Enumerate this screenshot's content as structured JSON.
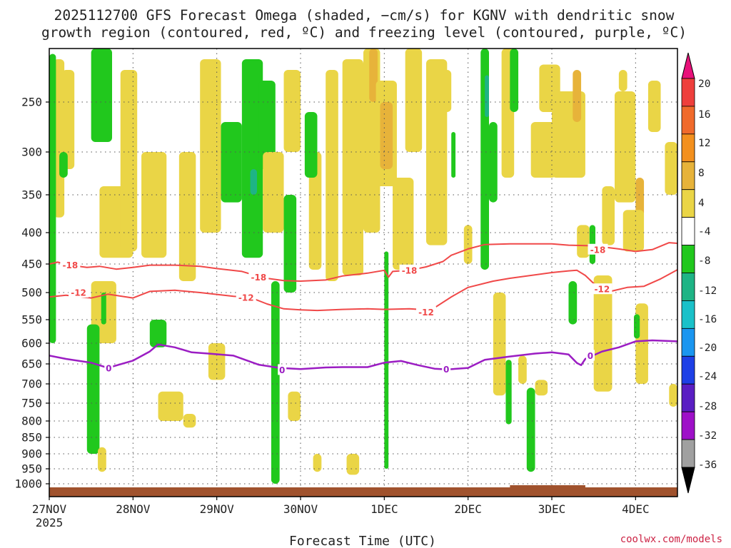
{
  "chart_data": {
    "type": "heatmap",
    "title_lines": [
      "2025112700 GFS Forecast Omega (shaded, −cm/s) for KGNV with dendritic snow",
      "growth region (contoured, red, ºC) and freezing level (contoured, purple, ºC)"
    ],
    "xlabel": "Forecast Time (UTC)",
    "x_ticks": [
      "27NOV",
      "28NOV",
      "29NOV",
      "30NOV",
      "1DEC",
      "2DEC",
      "3DEC",
      "4DEC"
    ],
    "x_tick_year": "2025",
    "x_range_days": [
      0,
      7.5
    ],
    "y_ticks": [
      250,
      300,
      350,
      400,
      450,
      500,
      550,
      600,
      650,
      700,
      750,
      800,
      850,
      900,
      950,
      1000
    ],
    "y_range_hpa": [
      200,
      1030
    ],
    "grid": true,
    "colorbar": {
      "labels": [
        "20",
        "16",
        "12",
        "8",
        "4",
        "-4",
        "-8",
        "-12",
        "-16",
        "-20",
        "-24",
        "-28",
        "-32",
        "-36"
      ],
      "colors": [
        "#e8117a",
        "#ee3f3c",
        "#f06a2b",
        "#f3901e",
        "#e7b33a",
        "#ead546",
        "#ffffff",
        "#21c81d",
        "#1eb485",
        "#1ac1c9",
        "#1a96f0",
        "#1e40e6",
        "#5a1ec3",
        "#9e10c8",
        "#a0a0a0",
        "#000000"
      ]
    },
    "contours": [
      {
        "label": "-18",
        "color": "#f04848",
        "x": [
          0,
          0.1,
          0.25,
          0.45,
          0.6,
          0.8,
          1.0,
          1.2,
          1.5,
          1.8,
          2.0,
          2.3,
          2.55,
          2.8,
          3.0,
          3.3,
          3.5,
          3.8,
          4.0,
          4.05,
          4.1,
          4.3,
          4.5,
          4.7,
          4.8,
          5.0,
          5.2,
          5.5,
          6.0,
          6.2,
          6.5,
          6.8,
          7.0,
          7.2,
          7.4,
          7.5
        ],
        "hpa": [
          450,
          447,
          452,
          456,
          454,
          459,
          456,
          452,
          452,
          454,
          458,
          463,
          474,
          479,
          480,
          478,
          471,
          466,
          461,
          473,
          463,
          461,
          455,
          446,
          436,
          426,
          419,
          418,
          418,
          420,
          421,
          426,
          430,
          427,
          416,
          417
        ]
      },
      {
        "label": "-12",
        "color": "#f04848",
        "x": [
          0,
          0.2,
          0.5,
          0.7,
          1.0,
          1.2,
          1.5,
          1.8,
          2.2,
          2.4,
          2.6,
          2.8,
          3.0,
          3.2,
          3.5,
          3.8,
          4.0,
          4.3,
          4.5,
          4.6,
          4.8,
          5.0,
          5.3,
          5.5,
          6.0,
          6.2,
          6.3,
          6.4,
          6.6,
          6.7,
          6.9,
          7.1,
          7.3,
          7.5
        ],
        "hpa": [
          508,
          505,
          510,
          503,
          510,
          498,
          496,
          500,
          507,
          509,
          521,
          530,
          532,
          533,
          531,
          530,
          531,
          530,
          532,
          528,
          508,
          491,
          480,
          475,
          465,
          462,
          461,
          470,
          498,
          498,
          491,
          489,
          476,
          460
        ]
      },
      {
        "label": "0",
        "color": "#9b1dc3",
        "x": [
          0,
          0.2,
          0.5,
          0.7,
          0.8,
          1.0,
          1.2,
          1.3,
          1.5,
          1.7,
          1.9,
          2.2,
          2.5,
          2.75,
          3.0,
          3.3,
          3.5,
          3.8,
          4.0,
          4.2,
          4.4,
          4.6,
          4.75,
          5.0,
          5.2,
          5.5,
          5.8,
          6.0,
          6.2,
          6.3,
          6.35,
          6.4,
          6.6,
          6.8,
          7.0,
          7.2,
          7.5
        ],
        "hpa": [
          630,
          638,
          647,
          660,
          654,
          642,
          620,
          603,
          610,
          622,
          625,
          630,
          652,
          660,
          663,
          659,
          658,
          658,
          647,
          643,
          653,
          662,
          664,
          660,
          640,
          632,
          625,
          622,
          627,
          648,
          653,
          638,
          620,
          610,
          596,
          594,
          596
        ]
      }
    ],
    "snow_region_labels": [
      {
        "text": "-18",
        "x": 0.25,
        "hpa": 452
      },
      {
        "text": "-18",
        "x": 2.5,
        "hpa": 473
      },
      {
        "text": "-18",
        "x": 4.3,
        "hpa": 461
      },
      {
        "text": "-18",
        "x": 6.55,
        "hpa": 427
      },
      {
        "text": "-12",
        "x": 0.35,
        "hpa": 500
      },
      {
        "text": "-12",
        "x": 2.35,
        "hpa": 509
      },
      {
        "text": "-12",
        "x": 4.5,
        "hpa": 536
      },
      {
        "text": "-12",
        "x": 6.6,
        "hpa": 494
      }
    ],
    "freezing_labels": [
      {
        "text": "0",
        "x": 0.71,
        "hpa": 661
      },
      {
        "text": "0",
        "x": 2.78,
        "hpa": 665
      },
      {
        "text": "0",
        "x": 4.74,
        "hpa": 663
      },
      {
        "text": "0",
        "x": 6.46,
        "hpa": 630
      }
    ],
    "shading": {
      "color_ascent_4_8": "#ead546",
      "color_ascent_8_12": "#e7b33a",
      "color_descent_4_8": "#21c81d",
      "color_descent_8_12": "#1eb485",
      "patches": [
        {
          "c": "y",
          "x": [
            0.05,
            0.18
          ],
          "p": [
            210,
            380
          ]
        },
        {
          "c": "y",
          "x": [
            0.15,
            0.3
          ],
          "p": [
            220,
            320
          ]
        },
        {
          "c": "g",
          "x": [
            0.0,
            0.08
          ],
          "p": [
            205,
            600
          ]
        },
        {
          "c": "g",
          "x": [
            0.12,
            0.22
          ],
          "p": [
            300,
            330
          ]
        },
        {
          "c": "g",
          "x": [
            0.5,
            0.75
          ],
          "p": [
            200,
            290
          ]
        },
        {
          "c": "y",
          "x": [
            0.6,
            1.0
          ],
          "p": [
            340,
            440
          ]
        },
        {
          "c": "y",
          "x": [
            0.5,
            0.8
          ],
          "p": [
            480,
            600
          ]
        },
        {
          "c": "g",
          "x": [
            0.45,
            0.6
          ],
          "p": [
            560,
            900
          ]
        },
        {
          "c": "g",
          "x": [
            0.62,
            0.68
          ],
          "p": [
            500,
            560
          ]
        },
        {
          "c": "y",
          "x": [
            0.58,
            0.68
          ],
          "p": [
            880,
            960
          ]
        },
        {
          "c": "y",
          "x": [
            0.85,
            1.05
          ],
          "p": [
            220,
            430
          ]
        },
        {
          "c": "y",
          "x": [
            1.1,
            1.4
          ],
          "p": [
            300,
            440
          ]
        },
        {
          "c": "g",
          "x": [
            1.2,
            1.4
          ],
          "p": [
            550,
            610
          ]
        },
        {
          "c": "y",
          "x": [
            1.3,
            1.6
          ],
          "p": [
            720,
            800
          ]
        },
        {
          "c": "y",
          "x": [
            1.6,
            1.75
          ],
          "p": [
            780,
            820
          ]
        },
        {
          "c": "y",
          "x": [
            1.55,
            1.75
          ],
          "p": [
            300,
            480
          ]
        },
        {
          "c": "y",
          "x": [
            1.8,
            2.05
          ],
          "p": [
            210,
            400
          ]
        },
        {
          "c": "y",
          "x": [
            1.9,
            2.1
          ],
          "p": [
            600,
            690
          ]
        },
        {
          "c": "g",
          "x": [
            2.05,
            2.3
          ],
          "p": [
            270,
            360
          ]
        },
        {
          "c": "g",
          "x": [
            2.3,
            2.55
          ],
          "p": [
            210,
            440
          ]
        },
        {
          "c": "t",
          "x": [
            2.4,
            2.48
          ],
          "p": [
            320,
            350
          ]
        },
        {
          "c": "g",
          "x": [
            2.5,
            2.7
          ],
          "p": [
            230,
            320
          ]
        },
        {
          "c": "y",
          "x": [
            2.55,
            2.8
          ],
          "p": [
            300,
            400
          ]
        },
        {
          "c": "g",
          "x": [
            2.65,
            2.75
          ],
          "p": [
            480,
            1000
          ]
        },
        {
          "c": "g",
          "x": [
            2.8,
            2.95
          ],
          "p": [
            350,
            500
          ]
        },
        {
          "c": "y",
          "x": [
            2.85,
            3.0
          ],
          "p": [
            720,
            800
          ]
        },
        {
          "c": "y",
          "x": [
            2.8,
            3.0
          ],
          "p": [
            220,
            300
          ]
        },
        {
          "c": "y",
          "x": [
            3.1,
            3.25
          ],
          "p": [
            300,
            460
          ]
        },
        {
          "c": "g",
          "x": [
            3.05,
            3.2
          ],
          "p": [
            260,
            330
          ]
        },
        {
          "c": "y",
          "x": [
            3.3,
            3.45
          ],
          "p": [
            220,
            480
          ]
        },
        {
          "c": "y",
          "x": [
            3.15,
            3.25
          ],
          "p": [
            900,
            960
          ]
        },
        {
          "c": "y",
          "x": [
            3.5,
            3.75
          ],
          "p": [
            210,
            470
          ]
        },
        {
          "c": "y",
          "x": [
            3.55,
            3.7
          ],
          "p": [
            900,
            970
          ]
        },
        {
          "c": "y",
          "x": [
            3.75,
            3.95
          ],
          "p": [
            200,
            400
          ]
        },
        {
          "c": "o",
          "x": [
            3.82,
            3.92
          ],
          "p": [
            200,
            250
          ]
        },
        {
          "c": "y",
          "x": [
            3.9,
            4.15
          ],
          "p": [
            230,
            340
          ]
        },
        {
          "c": "o",
          "x": [
            3.95,
            4.1
          ],
          "p": [
            250,
            320
          ]
        },
        {
          "c": "g",
          "x": [
            4.0,
            4.05
          ],
          "p": [
            430,
            950
          ]
        },
        {
          "c": "y",
          "x": [
            4.1,
            4.35
          ],
          "p": [
            330,
            460
          ]
        },
        {
          "c": "y",
          "x": [
            4.25,
            4.45
          ],
          "p": [
            200,
            300
          ]
        },
        {
          "c": "y",
          "x": [
            4.5,
            4.75
          ],
          "p": [
            210,
            420
          ]
        },
        {
          "c": "y",
          "x": [
            4.7,
            4.8
          ],
          "p": [
            220,
            260
          ]
        },
        {
          "c": "g",
          "x": [
            4.8,
            4.85
          ],
          "p": [
            280,
            330
          ]
        },
        {
          "c": "y",
          "x": [
            4.95,
            5.05
          ],
          "p": [
            390,
            450
          ]
        },
        {
          "c": "g",
          "x": [
            5.15,
            5.25
          ],
          "p": [
            200,
            460
          ]
        },
        {
          "c": "t",
          "x": [
            5.2,
            5.25
          ],
          "p": [
            225,
            265
          ]
        },
        {
          "c": "g",
          "x": [
            5.25,
            5.35
          ],
          "p": [
            270,
            360
          ]
        },
        {
          "c": "y",
          "x": [
            5.4,
            5.55
          ],
          "p": [
            200,
            330
          ]
        },
        {
          "c": "g",
          "x": [
            5.5,
            5.6
          ],
          "p": [
            200,
            260
          ]
        },
        {
          "c": "y",
          "x": [
            5.3,
            5.45
          ],
          "p": [
            500,
            730
          ]
        },
        {
          "c": "y",
          "x": [
            5.6,
            5.7
          ],
          "p": [
            630,
            700
          ]
        },
        {
          "c": "g",
          "x": [
            5.45,
            5.52
          ],
          "p": [
            640,
            810
          ]
        },
        {
          "c": "g",
          "x": [
            5.7,
            5.8
          ],
          "p": [
            710,
            960
          ]
        },
        {
          "c": "y",
          "x": [
            5.8,
            5.95
          ],
          "p": [
            690,
            730
          ]
        },
        {
          "c": "y",
          "x": [
            5.85,
            6.1
          ],
          "p": [
            215,
            260
          ]
        },
        {
          "c": "y",
          "x": [
            5.75,
            6.05
          ],
          "p": [
            270,
            330
          ]
        },
        {
          "c": "o",
          "x": [
            6.0,
            6.1
          ],
          "p": [
            265,
            320
          ]
        },
        {
          "c": "y",
          "x": [
            6.0,
            6.4
          ],
          "p": [
            240,
            330
          ]
        },
        {
          "c": "o",
          "x": [
            6.25,
            6.35
          ],
          "p": [
            220,
            270
          ]
        },
        {
          "c": "y",
          "x": [
            6.3,
            6.45
          ],
          "p": [
            390,
            440
          ]
        },
        {
          "c": "g",
          "x": [
            6.2,
            6.3
          ],
          "p": [
            480,
            560
          ]
        },
        {
          "c": "g",
          "x": [
            6.45,
            6.52
          ],
          "p": [
            390,
            450
          ]
        },
        {
          "c": "y",
          "x": [
            6.5,
            6.72
          ],
          "p": [
            470,
            720
          ]
        },
        {
          "c": "y",
          "x": [
            6.6,
            6.75
          ],
          "p": [
            340,
            420
          ]
        },
        {
          "c": "y",
          "x": [
            6.75,
            7.0
          ],
          "p": [
            240,
            360
          ]
        },
        {
          "c": "o",
          "x": [
            7.0,
            7.1
          ],
          "p": [
            330,
            380
          ]
        },
        {
          "c": "y",
          "x": [
            6.85,
            7.1
          ],
          "p": [
            370,
            430
          ]
        },
        {
          "c": "y",
          "x": [
            6.8,
            6.9
          ],
          "p": [
            220,
            240
          ]
        },
        {
          "c": "y",
          "x": [
            7.0,
            7.15
          ],
          "p": [
            520,
            700
          ]
        },
        {
          "c": "g",
          "x": [
            6.98,
            7.05
          ],
          "p": [
            540,
            590
          ]
        },
        {
          "c": "y",
          "x": [
            7.15,
            7.3
          ],
          "p": [
            230,
            280
          ]
        },
        {
          "c": "y",
          "x": [
            7.35,
            7.5
          ],
          "p": [
            290,
            350
          ]
        },
        {
          "c": "y",
          "x": [
            7.4,
            7.5
          ],
          "p": [
            700,
            760
          ]
        }
      ]
    }
  },
  "credit": "coolwx.com/models"
}
